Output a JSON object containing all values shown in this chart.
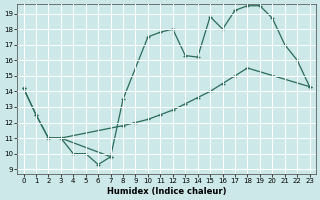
{
  "xlabel": "Humidex (Indice chaleur)",
  "bg_color": "#cce8e8",
  "grid_color": "#ffffff",
  "line_color": "#2a6b5a",
  "xlim": [
    -0.5,
    23.5
  ],
  "ylim": [
    8.7,
    19.6
  ],
  "yticks": [
    9,
    10,
    11,
    12,
    13,
    14,
    15,
    16,
    17,
    18,
    19
  ],
  "xticks": [
    0,
    1,
    2,
    3,
    4,
    5,
    6,
    7,
    8,
    9,
    10,
    11,
    12,
    13,
    14,
    15,
    16,
    17,
    18,
    19,
    20,
    21,
    22,
    23
  ],
  "line1_x": [
    0,
    1,
    2,
    3,
    4,
    5,
    6,
    7
  ],
  "line1_y": [
    14.2,
    12.5,
    11.0,
    11.0,
    10.0,
    10.0,
    9.3,
    9.8
  ],
  "line2_x": [
    0,
    1,
    2,
    3,
    7,
    8,
    10,
    11,
    12,
    13,
    14,
    15,
    16,
    17,
    18,
    19,
    20,
    21,
    22,
    23
  ],
  "line2_y": [
    14.2,
    12.5,
    11.0,
    11.0,
    9.8,
    13.5,
    17.5,
    17.8,
    18.0,
    16.3,
    16.2,
    18.8,
    18.0,
    19.2,
    19.5,
    19.5,
    18.7,
    17.0,
    16.0,
    14.3
  ],
  "line3_x": [
    2,
    3,
    8,
    9,
    10,
    11,
    12,
    13,
    14,
    15,
    16,
    17,
    18,
    23
  ],
  "line3_y": [
    11.0,
    11.0,
    11.8,
    12.0,
    12.2,
    12.5,
    12.8,
    13.2,
    13.6,
    14.0,
    14.5,
    15.0,
    15.5,
    14.3
  ]
}
